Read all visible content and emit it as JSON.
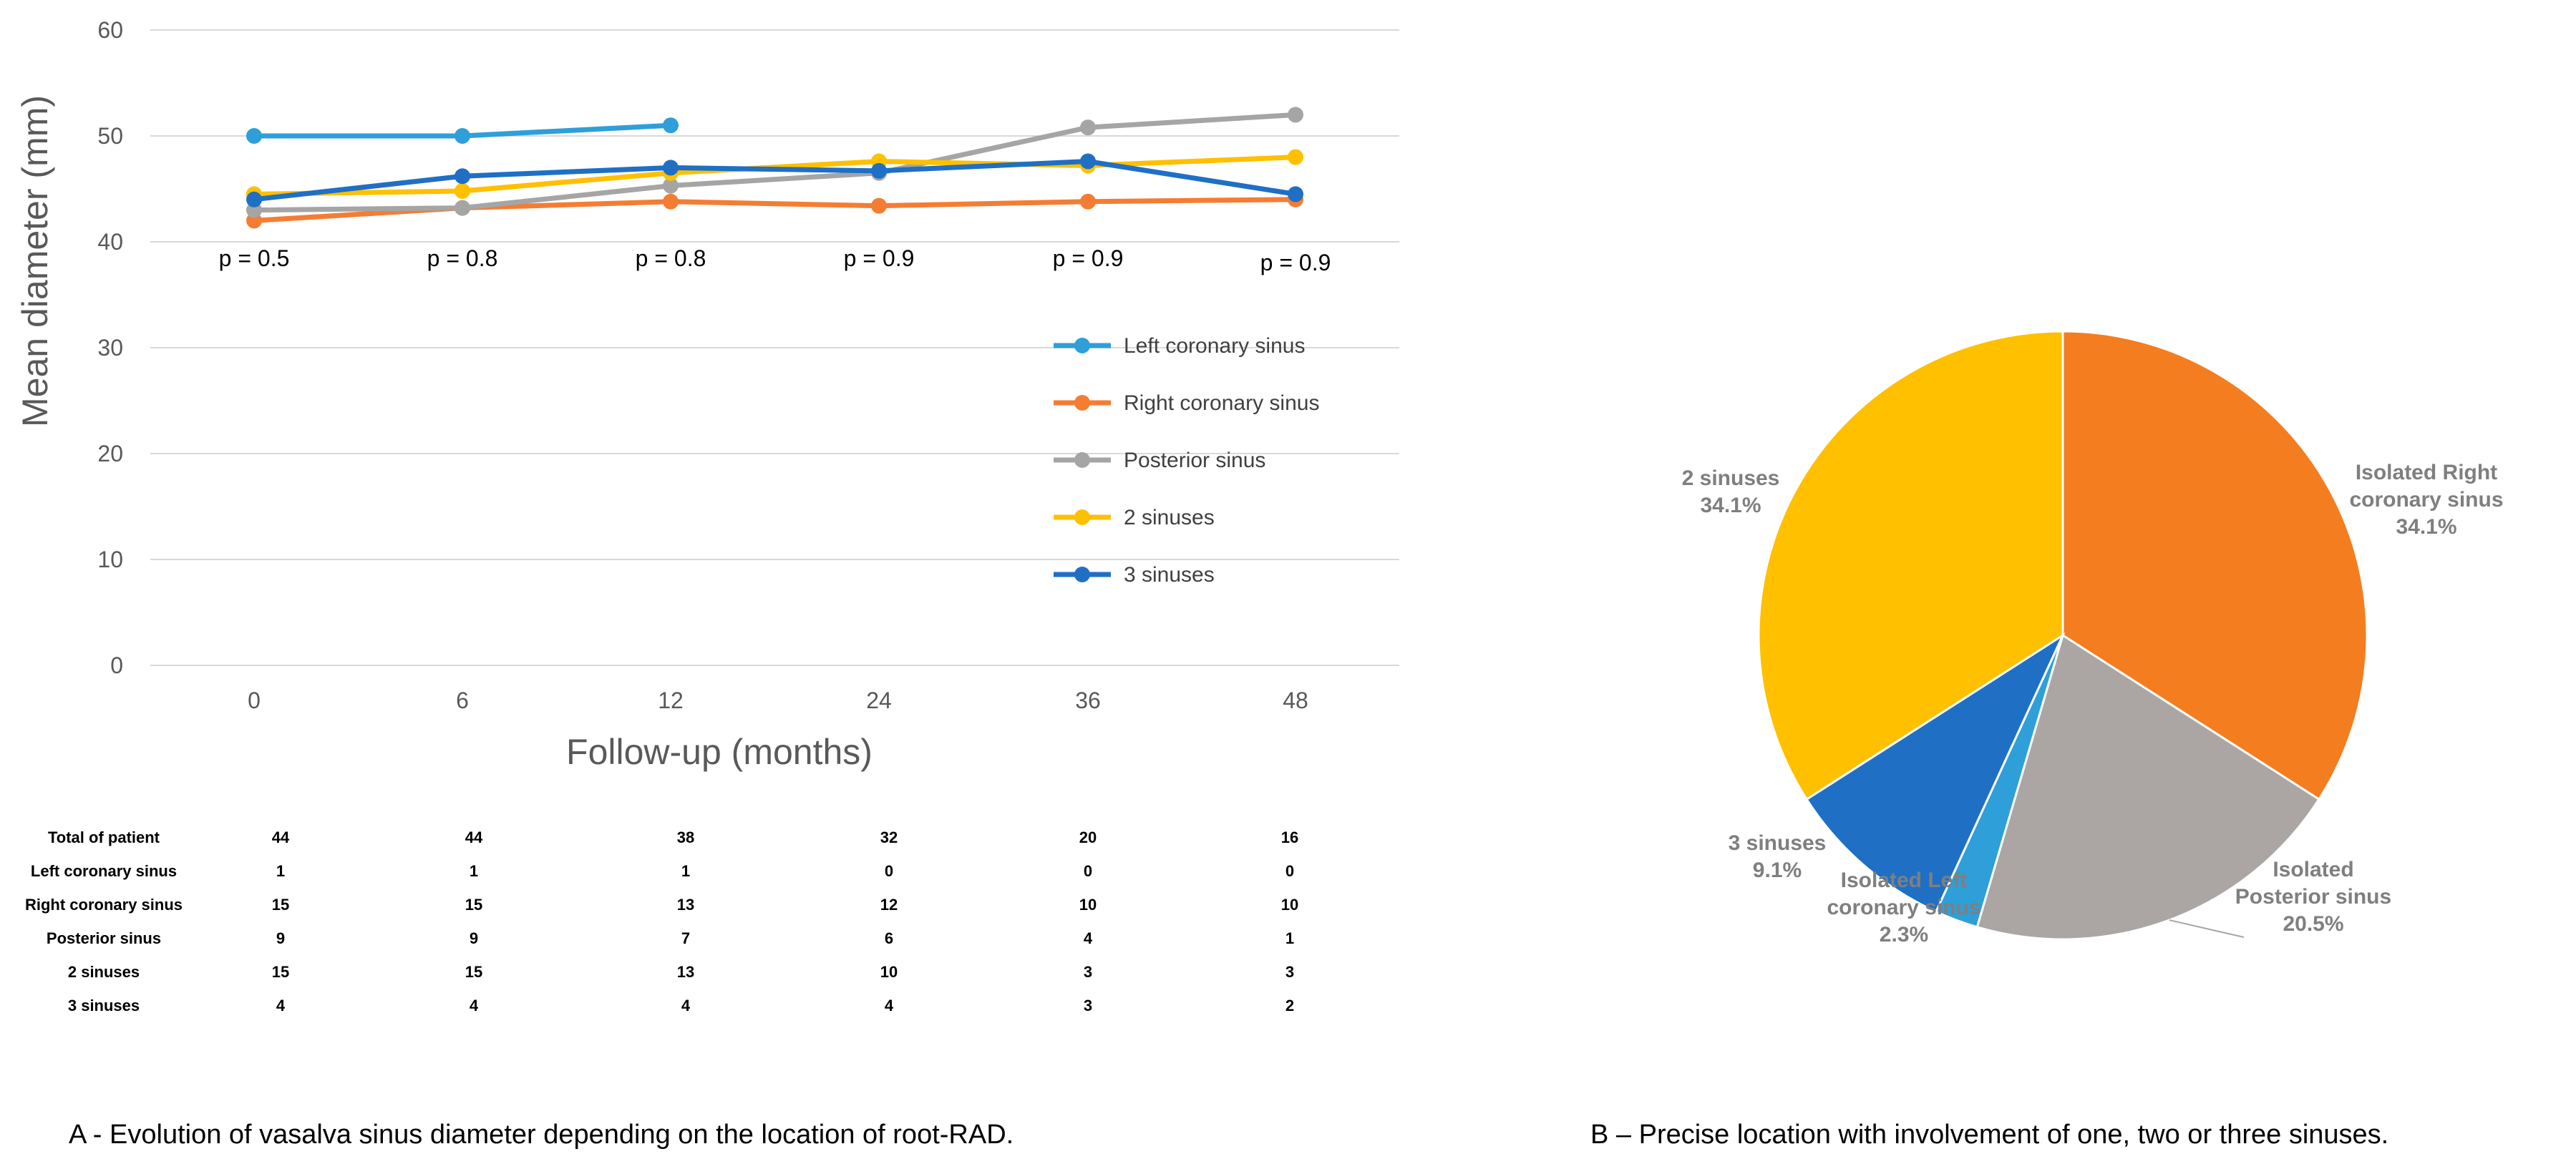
{
  "chart_data": [
    {
      "type": "line",
      "ylabel": "Mean diameter (mm)",
      "xlabel": "Follow-up (months)",
      "ylim": [
        0,
        60
      ],
      "yticks": [
        0,
        10,
        20,
        30,
        40,
        50,
        60
      ],
      "categories": [
        "0",
        "6",
        "12",
        "24",
        "36",
        "48"
      ],
      "series": [
        {
          "name": "Left coronary sinus",
          "color": "#2e9fd8",
          "values": [
            50,
            50,
            51,
            null,
            null,
            null
          ]
        },
        {
          "name": "Right coronary sinus",
          "color": "#f47d33",
          "values": [
            42,
            43.2,
            43.8,
            43.4,
            43.8,
            44
          ]
        },
        {
          "name": "Posterior sinus",
          "color": "#a5a5a5",
          "values": [
            43,
            43.2,
            45.3,
            46.5,
            50.8,
            52
          ]
        },
        {
          "name": "2 sinuses",
          "color": "#ffc000",
          "values": [
            44.5,
            44.8,
            46.5,
            47.6,
            47.2,
            48
          ]
        },
        {
          "name": "3 sinuses",
          "color": "#1f6fc5",
          "values": [
            44,
            46.2,
            47,
            46.7,
            47.6,
            44.5
          ]
        }
      ],
      "annotations": [
        "p = 0.5",
        "p = 0.8",
        "p = 0.8",
        "p = 0.9",
        "p = 0.9",
        "p = 0.9"
      ],
      "legend": "right"
    },
    {
      "type": "table",
      "rows": [
        {
          "label": "Total of patient",
          "values": [
            "44",
            "44",
            "38",
            "32",
            "20",
            "16"
          ]
        },
        {
          "label": "Left coronary sinus",
          "values": [
            "1",
            "1",
            "1",
            "0",
            "0",
            "0"
          ]
        },
        {
          "label": "Right coronary sinus",
          "values": [
            "15",
            "15",
            "13",
            "12",
            "10",
            "10"
          ]
        },
        {
          "label": "Posterior sinus",
          "values": [
            "9",
            "9",
            "7",
            "6",
            "4",
            "1"
          ]
        },
        {
          "label": "2 sinuses",
          "values": [
            "15",
            "15",
            "13",
            "10",
            "3",
            "3"
          ]
        },
        {
          "label": "3 sinuses",
          "values": [
            "4",
            "4",
            "4",
            "4",
            "3",
            "2"
          ]
        }
      ]
    },
    {
      "type": "pie",
      "slices": [
        {
          "name": "Isolated Right coronary sinus",
          "lines": [
            "Isolated Right",
            "coronary sinus"
          ],
          "pct_label": "34.1%",
          "value": 34.1,
          "color": "#f47d20"
        },
        {
          "name": "Isolated Posterior sinus",
          "lines": [
            "Isolated",
            "Posterior sinus"
          ],
          "pct_label": "20.5%",
          "value": 20.5,
          "color": "#aba6a4"
        },
        {
          "name": "Isolated Left coronary sinus",
          "lines": [
            "Isolated Left",
            "coronary sinus"
          ],
          "pct_label": "2.3%",
          "value": 2.3,
          "color": "#2e9fd8"
        },
        {
          "name": "3 sinuses",
          "lines": [
            "3 sinuses"
          ],
          "pct_label": "9.1%",
          "value": 9.1,
          "color": "#1f6fc5"
        },
        {
          "name": "2 sinuses",
          "lines": [
            "2 sinuses"
          ],
          "pct_label": "34.1%",
          "value": 34.1,
          "color": "#ffc000"
        }
      ]
    }
  ],
  "captions": {
    "a": "A - Evolution of vasalva sinus diameter depending on the location of root-RAD.",
    "b": "B – Precise location with involvement of one, two or three sinuses."
  }
}
